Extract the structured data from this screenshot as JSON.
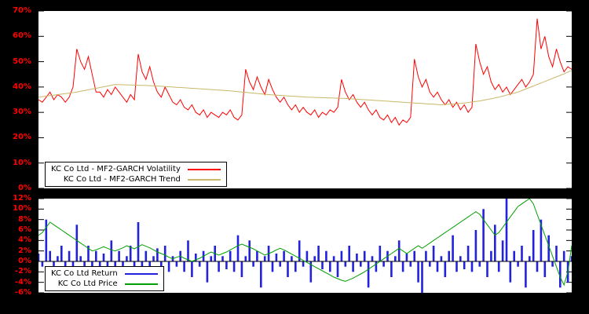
{
  "figure": {
    "background": "#000000",
    "panel_background": "#ffffff",
    "tick_label_color": "#ff0000",
    "legend_text_color": "#000000"
  },
  "chart_data": [
    {
      "type": "line",
      "title": "",
      "xlabel": "",
      "ylabel": "",
      "ylim": [
        0,
        70
      ],
      "ytick_values": [
        0,
        10,
        20,
        30,
        40,
        50,
        60,
        70
      ],
      "ytick_labels": [
        "0%",
        "10%",
        "20%",
        "30%",
        "40%",
        "50%",
        "60%",
        "70%"
      ],
      "grid": false,
      "legend_position": "bottom-left",
      "series": [
        {
          "name": "KC Co Ltd - MF2-GARCH Volatility",
          "color": "#ff0000",
          "values": [
            35,
            34,
            36,
            38,
            35,
            37,
            36,
            34,
            36,
            40,
            55,
            50,
            47,
            52,
            45,
            38,
            38,
            36,
            39,
            37,
            40,
            38,
            36,
            34,
            37,
            35,
            53,
            46,
            43,
            48,
            42,
            38,
            36,
            40,
            37,
            34,
            33,
            35,
            32,
            31,
            33,
            30,
            29,
            31,
            28,
            30,
            29,
            28,
            30,
            29,
            31,
            28,
            27,
            29,
            47,
            42,
            39,
            44,
            40,
            37,
            43,
            39,
            36,
            34,
            36,
            33,
            31,
            33,
            30,
            32,
            30,
            29,
            31,
            28,
            30,
            29,
            31,
            30,
            32,
            43,
            38,
            35,
            37,
            34,
            32,
            34,
            31,
            29,
            31,
            28,
            27,
            29,
            26,
            28,
            25,
            27,
            26,
            28,
            51,
            44,
            40,
            43,
            38,
            36,
            38,
            35,
            33,
            35,
            32,
            34,
            31,
            33,
            30,
            32,
            57,
            50,
            45,
            48,
            42,
            39,
            41,
            38,
            40,
            37,
            39,
            41,
            43,
            40,
            42,
            45,
            67,
            55,
            60,
            52,
            48,
            55,
            50,
            46,
            48,
            47
          ]
        },
        {
          "name": "KC Co Ltd - MF2-GARCH Trend",
          "color": "#c9b868",
          "values": [
            36.0,
            36.2,
            36.4,
            36.6,
            36.8,
            37.0,
            37.2,
            37.4,
            37.6,
            37.8,
            38.0,
            38.3,
            38.6,
            38.9,
            39.2,
            39.5,
            39.8,
            40.1,
            40.4,
            40.7,
            41.0,
            40.95,
            40.9,
            40.85,
            40.8,
            40.75,
            40.7,
            40.65,
            40.6,
            40.55,
            40.5,
            40.4,
            40.3,
            40.2,
            40.1,
            40.0,
            39.9,
            39.8,
            39.7,
            39.6,
            39.5,
            39.4,
            39.3,
            39.2,
            39.1,
            39.0,
            38.9,
            38.8,
            38.7,
            38.6,
            38.5,
            38.35,
            38.2,
            38.05,
            37.9,
            37.75,
            37.6,
            37.45,
            37.3,
            37.15,
            37.0,
            36.9,
            36.8,
            36.7,
            36.6,
            36.5,
            36.4,
            36.3,
            36.2,
            36.1,
            36.0,
            35.95,
            35.9,
            35.85,
            35.8,
            35.75,
            35.7,
            35.65,
            35.6,
            35.55,
            35.5,
            35.4,
            35.3,
            35.2,
            35.1,
            35.0,
            34.9,
            34.8,
            34.7,
            34.6,
            34.5,
            34.4,
            34.3,
            34.2,
            34.1,
            34.0,
            33.9,
            33.8,
            33.7,
            33.6,
            33.5,
            33.4,
            33.3,
            33.2,
            33.1,
            33.0,
            33.1,
            33.2,
            33.3,
            33.4,
            33.5,
            33.7,
            33.9,
            34.1,
            34.3,
            34.5,
            34.8,
            35.1,
            35.4,
            35.7,
            36.0,
            36.4,
            36.8,
            37.2,
            37.6,
            38.0,
            38.6,
            39.2,
            39.8,
            40.4,
            41.0,
            41.6,
            42.2,
            42.8,
            43.4,
            44.0,
            44.6,
            45.2,
            45.9,
            46.5
          ]
        }
      ]
    },
    {
      "type": "mixed",
      "title": "",
      "xlabel": "",
      "ylabel": "",
      "ylim": [
        -6,
        12
      ],
      "ytick_values": [
        -6,
        -4,
        -2,
        0,
        2,
        4,
        6,
        8,
        10,
        12
      ],
      "ytick_labels": [
        "-6%",
        "-4%",
        "-2%",
        "0%",
        "2%",
        "4%",
        "6%",
        "8%",
        "10%",
        "12%"
      ],
      "grid": false,
      "legend_position": "bottom-left",
      "series": [
        {
          "name": "KC Co Ltd Return",
          "type": "bar",
          "color": "#2222dd",
          "values": [
            1.5,
            -1,
            8,
            2,
            -2,
            1,
            3,
            -1.5,
            2,
            -3,
            7,
            1,
            -2,
            3,
            -1,
            2,
            -2.5,
            1.5,
            -1,
            4,
            -2,
            2,
            -4,
            1,
            3,
            -1,
            7.5,
            -2,
            2,
            -3,
            1,
            2.5,
            -1.5,
            3,
            -2,
            1,
            -1,
            2,
            -2,
            4,
            -3,
            1.5,
            -1,
            2,
            -4,
            1,
            3,
            -2,
            1,
            -1.5,
            2,
            -2,
            5,
            -3,
            1,
            4,
            -1,
            2,
            -5,
            1,
            3,
            -2,
            1.5,
            -1,
            2,
            -3,
            1,
            -2,
            4,
            -1,
            2,
            -4,
            1,
            3,
            -1.5,
            2,
            -2,
            1,
            -3,
            2,
            -1,
            3,
            -2,
            1.5,
            -1,
            2,
            -5,
            1,
            -2,
            3,
            -1,
            2,
            -3,
            1,
            4,
            -2,
            1.5,
            -1,
            2,
            -4,
            -6,
            2,
            -1,
            3,
            -2,
            1,
            -3,
            2,
            5,
            -2,
            1,
            -1.5,
            3,
            -2,
            6,
            -1,
            10,
            -3,
            2,
            7,
            -2,
            4,
            12,
            -4,
            2,
            -1,
            3,
            -5,
            1,
            6,
            -2,
            8,
            -3,
            5,
            -1,
            3,
            -5,
            2,
            -4,
            1
          ]
        },
        {
          "name": "KC Co Ltd Price",
          "type": "line",
          "color": "#00a000",
          "values": [
            5,
            5.5,
            6.5,
            7.5,
            7,
            6.5,
            6,
            5.5,
            5,
            4.5,
            4,
            3.5,
            3,
            2.5,
            2,
            2.2,
            2.5,
            2.8,
            2.5,
            2.2,
            2,
            2.3,
            2.6,
            3,
            2.7,
            2.4,
            2.8,
            3.2,
            2.9,
            2.6,
            2.2,
            1.8,
            1.5,
            1.2,
            0.8,
            0.5,
            0.8,
            1,
            0.6,
            0.3,
            0,
            0.3,
            0.6,
            1,
            1.4,
            1.8,
            1.5,
            1.2,
            1.5,
            1.8,
            2.2,
            2.6,
            3,
            3.3,
            3,
            2.7,
            2.4,
            2,
            1.6,
            1.2,
            1.5,
            1.8,
            2.2,
            2.5,
            2.2,
            1.8,
            1.4,
            1,
            0.6,
            0.2,
            -0.2,
            -0.6,
            -1,
            -1.4,
            -1.8,
            -2.2,
            -2.6,
            -3,
            -3.3,
            -3.6,
            -3.8,
            -3.5,
            -3.2,
            -2.8,
            -2.4,
            -2,
            -1.5,
            -1,
            -0.5,
            0,
            0.5,
            1,
            1.5,
            2,
            2.5,
            2,
            1.5,
            2,
            2.5,
            3,
            2.5,
            3,
            3.5,
            4,
            4.5,
            5,
            5.5,
            6,
            6.5,
            7,
            7.5,
            8,
            8.5,
            9,
            9.5,
            9,
            8,
            7,
            6,
            5,
            5.5,
            6.5,
            7.5,
            8.5,
            9.5,
            10.5,
            11,
            11.5,
            12,
            11,
            9,
            7,
            5,
            3,
            1,
            -1,
            -3,
            -4.5,
            -2,
            3
          ]
        }
      ]
    }
  ]
}
